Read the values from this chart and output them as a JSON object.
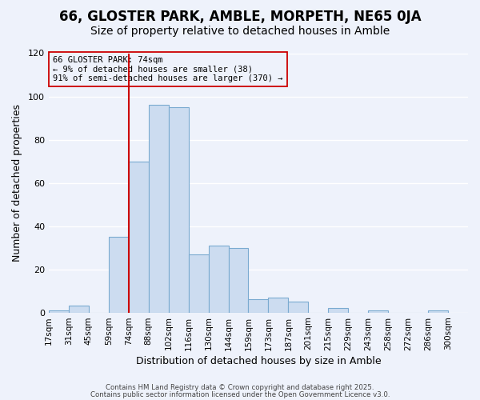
{
  "title": "66, GLOSTER PARK, AMBLE, MORPETH, NE65 0JA",
  "subtitle": "Size of property relative to detached houses in Amble",
  "xlabel": "Distribution of detached houses by size in Amble",
  "ylabel": "Number of detached properties",
  "tick_labels": [
    "17sqm",
    "31sqm",
    "45sqm",
    "59sqm",
    "74sqm",
    "88sqm",
    "102sqm",
    "116sqm",
    "130sqm",
    "144sqm",
    "159sqm",
    "173sqm",
    "187sqm",
    "201sqm",
    "215sqm",
    "229sqm",
    "243sqm",
    "258sqm",
    "272sqm",
    "286sqm",
    "300sqm"
  ],
  "bar_values": [
    1,
    3,
    0,
    35,
    70,
    96,
    95,
    27,
    31,
    30,
    6,
    7,
    5,
    0,
    2,
    0,
    1,
    0,
    0,
    1
  ],
  "bar_color": "#ccdcf0",
  "bar_edge_color": "#7aaad0",
  "highlight_bin_index": 4,
  "highlight_color": "#cc0000",
  "ylim": [
    0,
    120
  ],
  "yticks": [
    0,
    20,
    40,
    60,
    80,
    100,
    120
  ],
  "annotation_title": "66 GLOSTER PARK: 74sqm",
  "annotation_line1": "← 9% of detached houses are smaller (38)",
  "annotation_line2": "91% of semi-detached houses are larger (370) →",
  "footer1": "Contains HM Land Registry data © Crown copyright and database right 2025.",
  "footer2": "Contains public sector information licensed under the Open Government Licence v3.0.",
  "background_color": "#eef2fb",
  "grid_color": "#ffffff",
  "title_fontsize": 12,
  "subtitle_fontsize": 10
}
